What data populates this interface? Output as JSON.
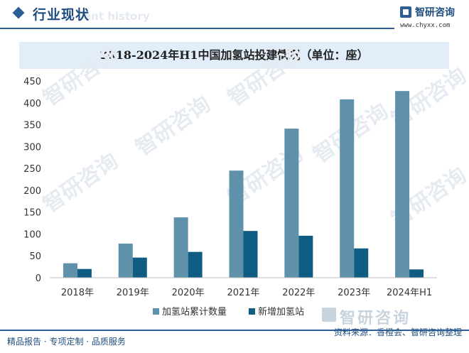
{
  "header": {
    "title": "行业现状",
    "subtitle": "ent history",
    "brand_name": "智研咨询",
    "brand_url": "www.chyxx.com",
    "accent_color": "#2d5f96"
  },
  "watermark": {
    "text": "智研咨询"
  },
  "chart_data": {
    "type": "bar",
    "title": "2018-2024年H1中国加氢站投建情况（单位：座）",
    "categories": [
      "2018年",
      "2019年",
      "2020年",
      "2021年",
      "2022年",
      "2023年",
      "2024年H1"
    ],
    "series": [
      {
        "name": "加氢站累计数量",
        "values": [
          33,
          78,
          138,
          245,
          341,
          408,
          427
        ],
        "color": "#5f92aa"
      },
      {
        "name": "新增加氢站",
        "values": [
          20,
          46,
          59,
          107,
          96,
          67,
          19
        ],
        "color": "#0f5d82"
      }
    ],
    "ylim": [
      0,
      450
    ],
    "yticks": [
      0,
      50,
      100,
      150,
      200,
      250,
      300,
      350,
      400,
      450
    ],
    "grid": false,
    "legend_position": "bottom"
  },
  "footer": {
    "left": "精品报告 · 专项定制 · 品质服务",
    "source": "资料来源：香橙会、智研咨询整理",
    "brand_watermark": "智研咨询"
  }
}
